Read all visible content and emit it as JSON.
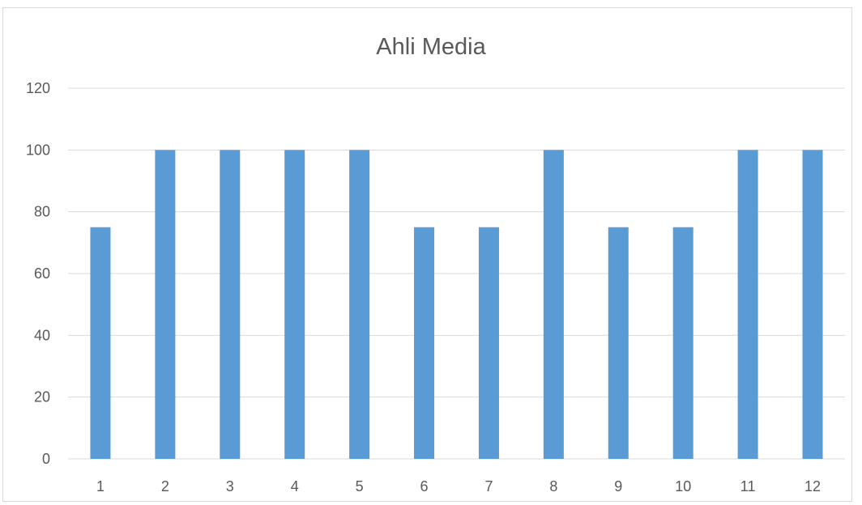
{
  "chart_data": {
    "type": "bar",
    "title": "Ahli Media",
    "xlabel": "",
    "ylabel": "",
    "categories": [
      "1",
      "2",
      "3",
      "4",
      "5",
      "6",
      "7",
      "8",
      "9",
      "10",
      "11",
      "12"
    ],
    "series": [
      {
        "values": [
          75,
          100,
          100,
          100,
          100,
          75,
          75,
          100,
          75,
          75,
          100,
          100
        ]
      }
    ],
    "ylim": [
      0,
      120
    ],
    "yticks": [
      0,
      20,
      40,
      60,
      80,
      100,
      120
    ],
    "grid": true,
    "legend": "none",
    "bar_color": "#5b9bd5",
    "grid_color": "#d9d9d9",
    "text_color": "#595959"
  }
}
